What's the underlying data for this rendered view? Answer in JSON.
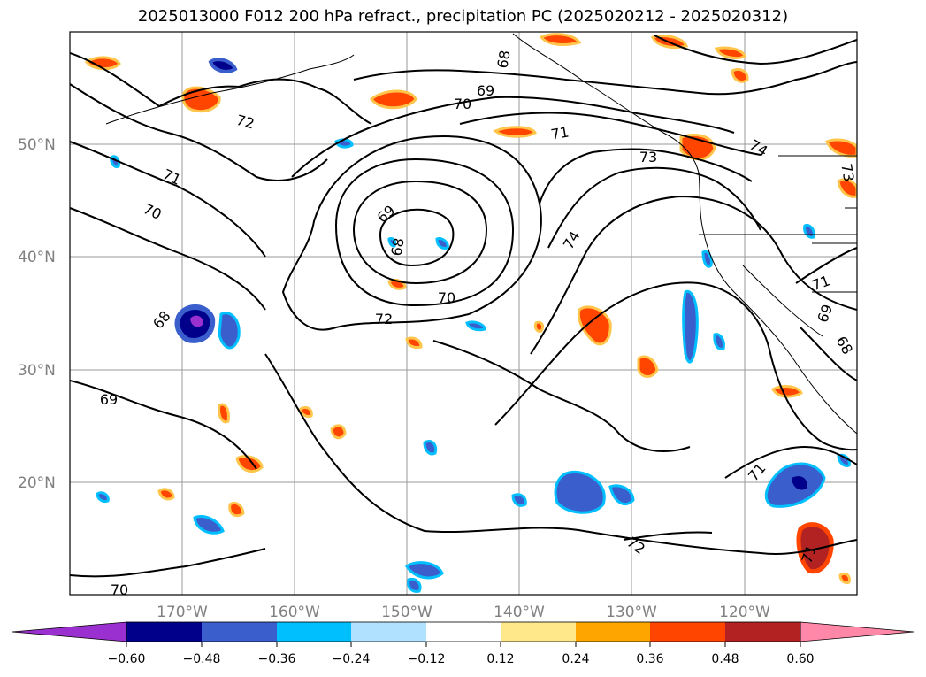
{
  "title": "2025013000 F012 200 hPa refract., precipitation PC (2025020212 - 2025020312)",
  "lat_labels": [
    "50°N",
    "40°N",
    "30°N",
    "20°N"
  ],
  "lon_labels": [
    "170°W",
    "160°W",
    "150°W",
    "140°W",
    "130°W",
    "120°W"
  ],
  "contour_labels": [
    "68",
    "69",
    "70",
    "72",
    "71",
    "70",
    "69",
    "68",
    "71",
    "74",
    "73",
    "74",
    "72",
    "70",
    "68",
    "69",
    "69",
    "70",
    "71",
    "68",
    "72",
    "71",
    "73",
    "71",
    "69",
    "68"
  ],
  "colorbar": {
    "tick_labels": [
      "−0.60",
      "−0.48",
      "−0.36",
      "−0.24",
      "−0.12",
      "0.12",
      "0.24",
      "0.36",
      "0.48",
      "0.60"
    ],
    "colors": [
      "#9b30d0",
      "#00008b",
      "#3a5fcd",
      "#00bfff",
      "#b0e2ff",
      "#ffffff",
      "#ffe88a",
      "#ffa500",
      "#ff4500",
      "#b22222",
      "#ff88a8"
    ]
  }
}
